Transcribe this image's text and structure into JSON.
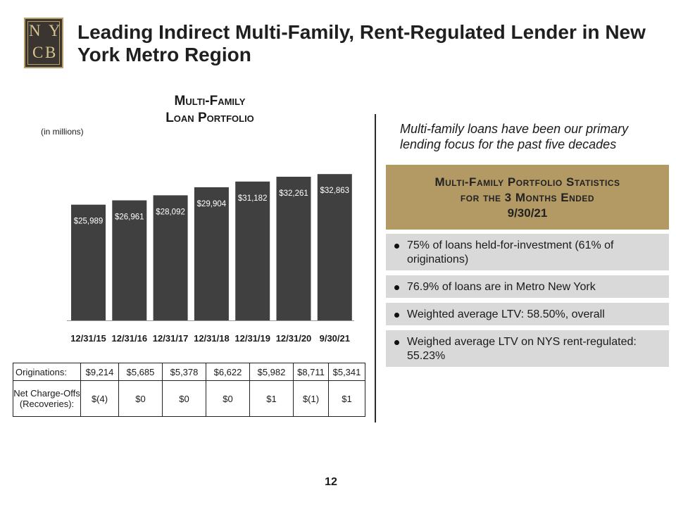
{
  "header": {
    "logo_letters": [
      "N",
      "Y",
      "C",
      "B"
    ],
    "title": "Leading Indirect Multi-Family, Rent-Regulated Lender in New York Metro Region"
  },
  "chart_section": {
    "title_line1": "Multi-Family",
    "title_line2": "Loan Portfolio",
    "units": "(in millions)"
  },
  "chart_data": {
    "type": "bar",
    "categories": [
      "12/31/15",
      "12/31/16",
      "12/31/17",
      "12/31/18",
      "12/31/19",
      "12/31/20",
      "9/30/21"
    ],
    "values": [
      25989,
      26961,
      28092,
      29904,
      31182,
      32261,
      32863
    ],
    "value_labels": [
      "$25,989",
      "$26,961",
      "$28,092",
      "$29,904",
      "$31,182",
      "$32,261",
      "$32,863"
    ],
    "bar_color": "#404040",
    "title": "Multi-Family Loan Portfolio",
    "ylabel": "(in millions)",
    "ylim": [
      0,
      34000
    ]
  },
  "table": {
    "rows": [
      {
        "label": "Originations:",
        "values": [
          "$9,214",
          "$5,685",
          "$5,378",
          "$6,622",
          "$5,982",
          "$8,711",
          "$5,341"
        ]
      },
      {
        "label_line1": "Net Charge-Offs",
        "label_line2": "(Recoveries):",
        "values": [
          "$(4)",
          "$0",
          "$0",
          "$0",
          "$1",
          "$(1)",
          "$1"
        ]
      }
    ]
  },
  "right_panel": {
    "focus_text": "Multi-family loans have been our primary lending focus for the past five decades",
    "stats_title_line1": "Multi-Family Portfolio Statistics",
    "stats_title_line2": "for the 3 Months Ended",
    "stats_title_line3": "9/30/21",
    "header_color": "#b39a64",
    "bullets": [
      "75% of loans held-for-investment (61% of originations)",
      "76.9% of loans are in Metro New York",
      "Weighted average LTV: 58.50%, overall",
      "Weighed average LTV on NYS rent-regulated: 55.23%"
    ]
  },
  "footer": {
    "page_number": "12"
  }
}
